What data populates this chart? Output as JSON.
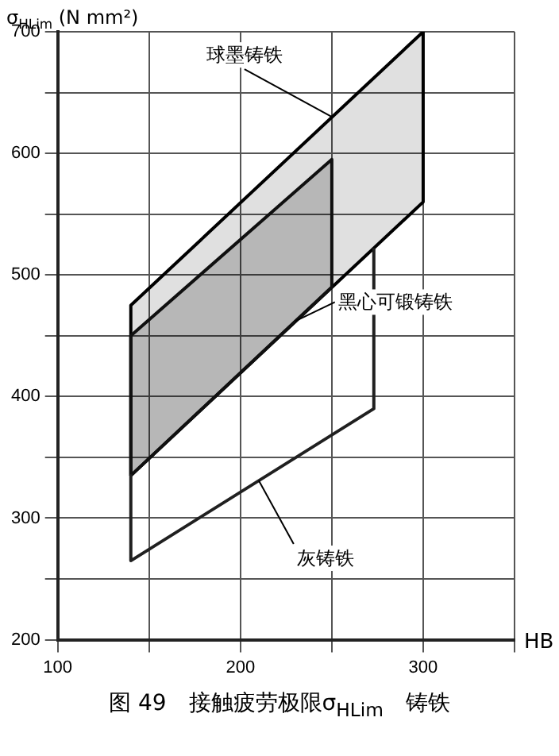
{
  "chart_data": {
    "type": "line",
    "title": "图 49　接触疲劳极限σ$_{HLim}$　铸铁",
    "xlabel": "HB",
    "ylabel": "σ$_{HLim}$ (N mm²)",
    "xlim": [
      100,
      350
    ],
    "xticks": [
      100,
      {
        "value": 150,
        "label": null
      },
      200,
      {
        "value": 250,
        "label": null
      },
      300,
      {
        "value": 350,
        "label": null
      }
    ],
    "ylim": [
      200,
      700
    ],
    "yticks": [
      200,
      {
        "value": 250,
        "label": null
      },
      300,
      {
        "value": 350,
        "label": null
      },
      400,
      {
        "value": 450,
        "label": null
      },
      500,
      {
        "value": 550,
        "label": null
      },
      600,
      {
        "value": 650,
        "label": null
      },
      700
    ],
    "grid": true,
    "marker": "none",
    "line_style": "solid",
    "series": [
      {
        "type": "area",
        "color": "#000000",
        "x": [
          140,
          140,
          300,
          300,
          140
        ],
        "values": [
          335,
          475,
          700,
          560,
          335
        ]
      },
      {
        "type": "area",
        "color": "#101010",
        "x": [
          140,
          140,
          250,
          250,
          140
        ],
        "values": [
          335,
          450,
          595,
          490,
          335
        ]
      },
      {
        "type": "line",
        "color": "#202020",
        "x": [
          140,
          140,
          273,
          273
        ],
        "values": [
          335,
          265,
          390,
          522
        ]
      }
    ],
    "annotations": [
      {
        "text": "球墨铸铁",
        "x": 250,
        "y": 630
      },
      {
        "text": "黑心可锻铸铁",
        "x": 230,
        "y": 462
      },
      {
        "text": "灰铸铁",
        "x": 210,
        "y": 331
      }
    ]
  }
}
